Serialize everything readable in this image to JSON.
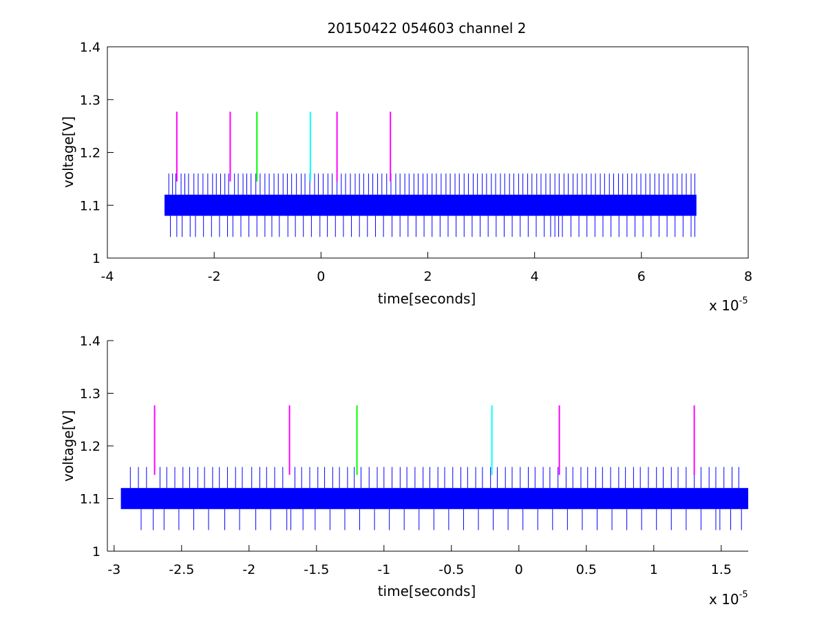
{
  "chart_data": [
    {
      "type": "line",
      "title": "20150422 054603 channel 2",
      "xlabel": "time[seconds]",
      "ylabel": "voltage[V]",
      "x_exponent_label": "x 10",
      "x_exponent_power": "-5",
      "xlim": [
        -4,
        8
      ],
      "ylim": [
        1,
        1.4
      ],
      "xticks": [
        -4,
        -2,
        0,
        2,
        4,
        6,
        8
      ],
      "xtick_labels": [
        "-4",
        "-2",
        "0",
        "2",
        "4",
        "6",
        "8"
      ],
      "yticks": [
        1,
        1.1,
        1.2,
        1.3,
        1.4
      ],
      "ytick_labels": [
        "1",
        "1.1",
        "1.2",
        "1.3",
        "1.4"
      ],
      "grid": false,
      "series": [
        {
          "color": "#0000ff",
          "x_range": [
            -2.93,
            7.03
          ],
          "band": [
            1.08,
            1.12
          ],
          "spike_high": 1.16,
          "spike_low": 1.04,
          "high_spike_x": [
            -2.85,
            -2.78,
            -2.72,
            -2.62,
            -2.55,
            -2.48,
            -2.38,
            -2.3,
            -2.21,
            -2.12,
            -2.03,
            -1.96,
            -1.88,
            -1.8,
            -1.73,
            -1.62,
            -1.55,
            -1.46,
            -1.39,
            -1.31,
            -1.22,
            -1.14,
            -1.05,
            -0.97,
            -0.88,
            -0.8,
            -0.71,
            -0.63,
            -0.55,
            -0.46,
            -0.37,
            -0.3,
            -0.21,
            -0.12,
            -0.05,
            0.04,
            0.13,
            0.21,
            0.3,
            0.38,
            0.46,
            0.55,
            0.64,
            0.72,
            0.8,
            0.89,
            0.97,
            1.06,
            1.14,
            1.23,
            1.31,
            1.4,
            1.48,
            1.57,
            1.65,
            1.74,
            1.82,
            1.91,
            1.99,
            2.08,
            2.16,
            2.25,
            2.34,
            2.42,
            2.51,
            2.59,
            2.68,
            2.76,
            2.85,
            2.93,
            3.02,
            3.1,
            3.19,
            3.27,
            3.36,
            3.44,
            3.53,
            3.61,
            3.7,
            3.78,
            3.87,
            3.95,
            4.04,
            4.12,
            4.21,
            4.29,
            4.38,
            4.46,
            4.55,
            4.63,
            4.72,
            4.8,
            4.89,
            4.97,
            5.06,
            5.14,
            5.23,
            5.31,
            5.4,
            5.48,
            5.57,
            5.65,
            5.74,
            5.82,
            5.91,
            5.99,
            6.08,
            6.16,
            6.25,
            6.33,
            6.42,
            6.5,
            6.59,
            6.67,
            6.76,
            6.84,
            6.93,
            7.0
          ],
          "low_spike_x": [
            -2.82,
            -2.7,
            -2.6,
            -2.45,
            -2.35,
            -2.2,
            -2.05,
            -1.9,
            -1.75,
            -1.65,
            -1.5,
            -1.35,
            -1.2,
            -1.05,
            -0.92,
            -0.78,
            -0.62,
            -0.48,
            -0.33,
            -0.18,
            -0.02,
            0.12,
            0.27,
            0.42,
            0.57,
            0.72,
            0.87,
            1.02,
            1.17,
            1.33,
            1.48,
            1.63,
            1.78,
            1.93,
            2.08,
            2.23,
            2.38,
            2.53,
            2.68,
            2.83,
            2.98,
            3.13,
            3.28,
            3.43,
            3.58,
            3.73,
            3.88,
            4.03,
            4.18,
            4.3,
            4.38,
            4.45,
            4.52,
            4.68,
            4.83,
            4.98,
            5.13,
            5.28,
            5.43,
            5.58,
            5.73,
            5.88,
            6.03,
            6.18,
            6.33,
            6.48,
            6.63,
            6.78,
            6.93,
            7.0
          ]
        }
      ],
      "markers": [
        {
          "x": -2.7,
          "color": "#ff00ff",
          "y_range": [
            1.145,
            1.277
          ]
        },
        {
          "x": -1.7,
          "color": "#ff00ff",
          "y_range": [
            1.145,
            1.277
          ]
        },
        {
          "x": -1.2,
          "color": "#00ff00",
          "y_range": [
            1.145,
            1.277
          ]
        },
        {
          "x": -0.2,
          "color": "#00ffff",
          "y_range": [
            1.145,
            1.277
          ]
        },
        {
          "x": 0.3,
          "color": "#ff00ff",
          "y_range": [
            1.145,
            1.277
          ]
        },
        {
          "x": 1.3,
          "color": "#ff00ff",
          "y_range": [
            1.145,
            1.277
          ]
        }
      ]
    },
    {
      "type": "line",
      "title": "",
      "xlabel": "time[seconds]",
      "ylabel": "voltage[V]",
      "x_exponent_label": "x 10",
      "x_exponent_power": "-5",
      "xlim": [
        -3.05,
        1.7
      ],
      "ylim": [
        1,
        1.4
      ],
      "xticks": [
        -3,
        -2.5,
        -2,
        -1.5,
        -1,
        -0.5,
        0,
        0.5,
        1,
        1.5
      ],
      "xtick_labels": [
        "-3",
        "-2.5",
        "-2",
        "-1.5",
        "-1",
        "-0.5",
        "0",
        "0.5",
        "1",
        "1.5"
      ],
      "yticks": [
        1,
        1.1,
        1.2,
        1.3,
        1.4
      ],
      "ytick_labels": [
        "1",
        "1.1",
        "1.2",
        "1.3",
        "1.4"
      ],
      "grid": false,
      "series": [
        {
          "color": "#0000ff",
          "x_range": [
            -2.95,
            1.7
          ],
          "band": [
            1.08,
            1.12
          ],
          "spike_high": 1.16,
          "spike_low": 1.04,
          "high_spike_x": [
            -2.88,
            -2.82,
            -2.76,
            -2.66,
            -2.61,
            -2.55,
            -2.49,
            -2.44,
            -2.38,
            -2.33,
            -2.27,
            -2.22,
            -2.16,
            -2.1,
            -2.05,
            -1.98,
            -1.92,
            -1.87,
            -1.81,
            -1.75,
            -1.66,
            -1.61,
            -1.55,
            -1.49,
            -1.44,
            -1.38,
            -1.33,
            -1.27,
            -1.22,
            -1.17,
            -1.11,
            -1.05,
            -1.0,
            -0.94,
            -0.88,
            -0.83,
            -0.77,
            -0.71,
            -0.66,
            -0.6,
            -0.55,
            -0.49,
            -0.43,
            -0.38,
            -0.32,
            -0.27,
            -0.21,
            -0.16,
            -0.1,
            -0.05,
            0.01,
            0.07,
            0.12,
            0.18,
            0.23,
            0.29,
            0.35,
            0.4,
            0.46,
            0.51,
            0.57,
            0.62,
            0.68,
            0.74,
            0.79,
            0.85,
            0.9,
            0.96,
            1.02,
            1.07,
            1.13,
            1.18,
            1.24,
            1.3,
            1.35,
            1.41,
            1.46,
            1.52,
            1.58,
            1.63
          ],
          "low_spike_x": [
            -2.8,
            -2.71,
            -2.63,
            -2.52,
            -2.41,
            -2.3,
            -2.18,
            -2.07,
            -1.95,
            -1.84,
            -1.72,
            -1.69,
            -1.6,
            -1.51,
            -1.4,
            -1.29,
            -1.18,
            -1.07,
            -0.96,
            -0.85,
            -0.74,
            -0.63,
            -0.52,
            -0.41,
            -0.3,
            -0.19,
            -0.08,
            0.03,
            0.14,
            0.25,
            0.36,
            0.47,
            0.58,
            0.69,
            0.8,
            0.91,
            1.02,
            1.13,
            1.24,
            1.35,
            1.46,
            1.49,
            1.57,
            1.65
          ]
        }
      ],
      "markers": [
        {
          "x": -2.7,
          "color": "#ff00ff",
          "y_range": [
            1.145,
            1.277
          ]
        },
        {
          "x": -1.7,
          "color": "#ff00ff",
          "y_range": [
            1.145,
            1.277
          ]
        },
        {
          "x": -1.2,
          "color": "#00ff00",
          "y_range": [
            1.145,
            1.277
          ]
        },
        {
          "x": -0.2,
          "color": "#00ffff",
          "y_range": [
            1.145,
            1.277
          ]
        },
        {
          "x": 0.3,
          "color": "#ff00ff",
          "y_range": [
            1.145,
            1.277
          ]
        },
        {
          "x": 1.3,
          "color": "#ff00ff",
          "y_range": [
            1.145,
            1.277
          ]
        }
      ]
    }
  ]
}
